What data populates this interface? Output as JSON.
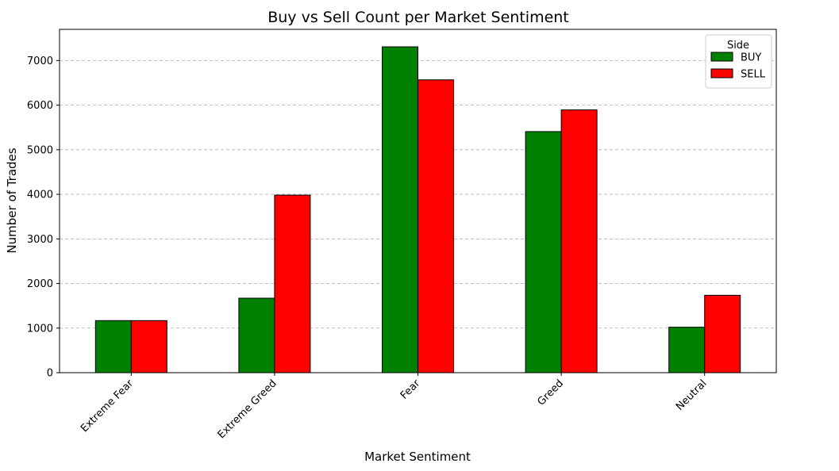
{
  "chart_data": {
    "type": "bar",
    "title": "Buy vs Sell Count per Market Sentiment",
    "xlabel": "Market Sentiment",
    "ylabel": "Number of Trades",
    "categories": [
      "Extreme Fear",
      "Extreme Greed",
      "Fear",
      "Greed",
      "Neutral"
    ],
    "series": [
      {
        "name": "BUY",
        "color": "#008000",
        "values": [
          1168,
          1671,
          7308,
          5407,
          1020
        ]
      },
      {
        "name": "SELL",
        "color": "#ff0000",
        "values": [
          1168,
          3982,
          6567,
          5893,
          1736
        ]
      }
    ],
    "ylim": [
      0,
      7700
    ],
    "yticks": [
      0,
      1000,
      2000,
      3000,
      4000,
      5000,
      6000,
      7000
    ],
    "grid": "y-dashed",
    "legend": {
      "title": "Side",
      "position": "top-right"
    },
    "xtick_rotation": 45
  }
}
